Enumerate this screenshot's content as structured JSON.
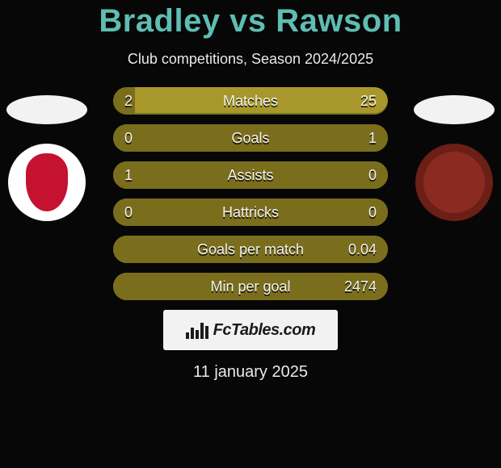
{
  "title": "Bradley vs Rawson",
  "subtitle": "Club competitions, Season 2024/2025",
  "date": "11 january 2025",
  "brand": "FcTables.com",
  "colors": {
    "background": "#070707",
    "accent": "#5fbdb3",
    "bar_base": "#a8982c",
    "bar_fill": "#7a6d1c",
    "plate": "#f2f2f2",
    "badge_left_crest": "#c41230",
    "badge_right_outer": "#6c1f17",
    "badge_right_inner": "#8a2a20"
  },
  "players": {
    "left": {
      "name": "Bradley",
      "badge": "liverpool"
    },
    "right": {
      "name": "Rawson",
      "badge": "accrington-stanley"
    }
  },
  "rows": [
    {
      "label": "Matches",
      "left": "2",
      "right": "25",
      "fill_side": "left",
      "fill_pct": 8
    },
    {
      "label": "Goals",
      "left": "0",
      "right": "1",
      "fill_side": "right",
      "fill_pct": 100
    },
    {
      "label": "Assists",
      "left": "1",
      "right": "0",
      "fill_side": "left",
      "fill_pct": 100
    },
    {
      "label": "Hattricks",
      "left": "0",
      "right": "0",
      "fill_side": "left",
      "fill_pct": 100
    },
    {
      "label": "Goals per match",
      "left": "",
      "right": "0.04",
      "fill_side": "right",
      "fill_pct": 100
    },
    {
      "label": "Min per goal",
      "left": "",
      "right": "2474",
      "fill_side": "right",
      "fill_pct": 100
    }
  ]
}
